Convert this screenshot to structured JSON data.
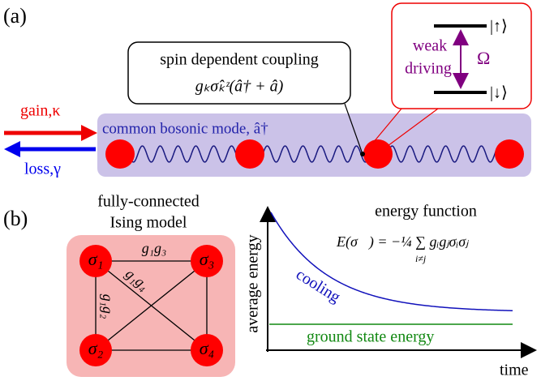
{
  "panel_a": {
    "label": "(a)",
    "coupling_box": {
      "line1": "spin dependent coupling",
      "line2": "gₖσ̂ₖᶻ(â† + â)"
    },
    "drive_box": {
      "weak": "weak",
      "driving": "driving",
      "omega": "Ω",
      "up": "|↑⟩",
      "down": "|↓⟩"
    },
    "gain": "gain,κ",
    "loss": "loss,γ",
    "mode": "common bosonic mode, â†"
  },
  "panel_b": {
    "label": "(b)",
    "ising": {
      "title_line1": "fully-connected",
      "title_line2": "Ising model",
      "nodes": [
        "σ₁",
        "σ₂",
        "σ₃",
        "σ₄"
      ],
      "edges": [
        "g₁g₃",
        "g₁g₄",
        "g₁g₂"
      ]
    },
    "plot": {
      "title": "energy function",
      "formula": "E(σ⃗) = −¼ ∑ gᵢgⱼσᵢσⱼ",
      "formula_sub": "i≠j",
      "cooling": "cooling",
      "ground": "ground state energy",
      "ylabel": "average energy",
      "xlabel": "time"
    }
  }
}
